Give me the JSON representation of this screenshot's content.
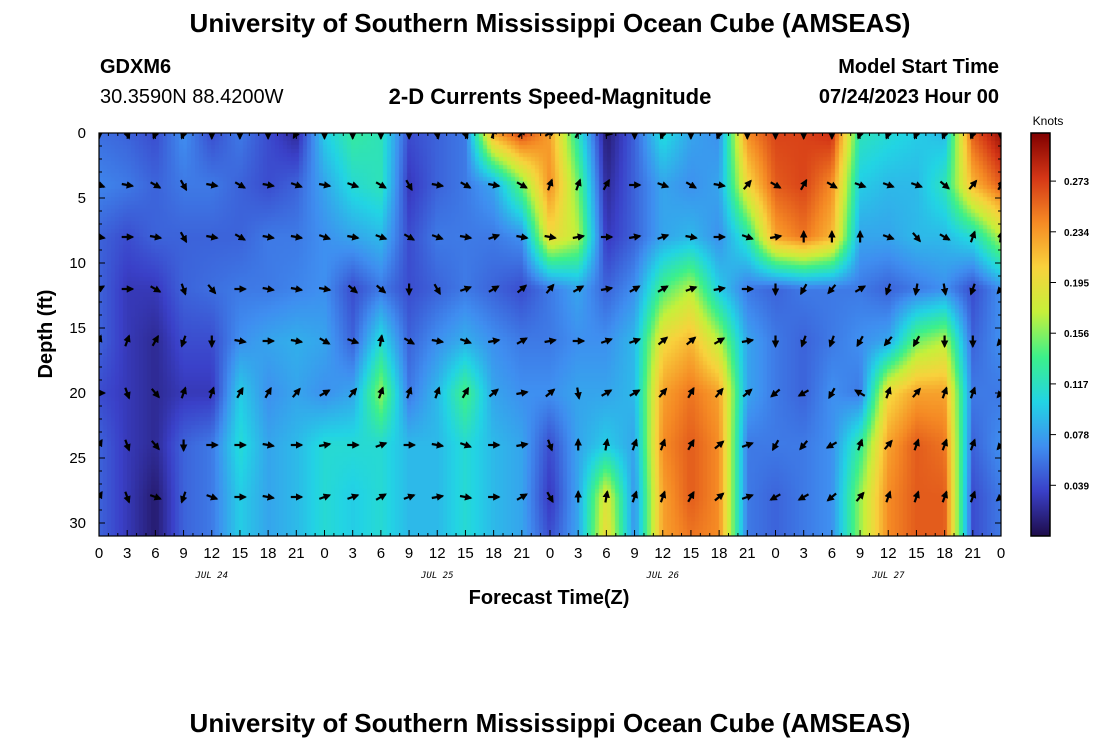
{
  "header": {
    "title": "University of Southern Mississippi Ocean Cube (AMSEAS)",
    "station": "GDXM6",
    "coords": "30.3590N  88.4200W",
    "subtitle": "2-D Currents Speed-Magnitude",
    "model_start_label": "Model Start Time",
    "model_start_date": "07/24/2023 Hour 00"
  },
  "footer": {
    "title": "University of Southern Mississippi Ocean Cube (AMSEAS)"
  },
  "chart_data": {
    "type": "heatmap",
    "title": "2-D Currents Speed-Magnitude",
    "xlabel": "Forecast Time(Z)",
    "ylabel": "Depth (ft)",
    "x_tick_labels": [
      "0",
      "3",
      "6",
      "9",
      "12",
      "15",
      "18",
      "21",
      "0",
      "3",
      "6",
      "9",
      "12",
      "15",
      "18",
      "21",
      "0",
      "3",
      "6",
      "9",
      "12",
      "15",
      "18",
      "21",
      "0",
      "3",
      "6",
      "9",
      "12",
      "15",
      "18",
      "21",
      "0"
    ],
    "day_labels": [
      {
        "label": "JUL 24",
        "hour": 12
      },
      {
        "label": "JUL 25",
        "hour": 36
      },
      {
        "label": "JUL 26",
        "hour": 60
      },
      {
        "label": "JUL 27",
        "hour": 84
      }
    ],
    "xlim_hours": [
      0,
      96
    ],
    "y_ticks": [
      0,
      5,
      10,
      15,
      20,
      25,
      30
    ],
    "ylim_ft": [
      0,
      31
    ],
    "colorbar": {
      "label": "Knots",
      "ticks": [
        "0.273",
        "0.234",
        "0.195",
        "0.156",
        "0.117",
        "0.078",
        "0.039"
      ],
      "tick_values": [
        0.273,
        0.234,
        0.195,
        0.156,
        0.117,
        0.078,
        0.039
      ],
      "range": [
        0.0,
        0.31
      ],
      "colors": [
        "#1e0c4a",
        "#3a40c8",
        "#3f8ef0",
        "#22d4e4",
        "#3cf08a",
        "#c6f03a",
        "#f8d23c",
        "#f58a24",
        "#d43616",
        "#800000"
      ]
    },
    "speed_column_hours": [
      0,
      3,
      6,
      9,
      12,
      15,
      18,
      21,
      24,
      27,
      30,
      33,
      36,
      39,
      42,
      45,
      48,
      51,
      54,
      57,
      60,
      63,
      66,
      69,
      72,
      75,
      78,
      81,
      84,
      87,
      90,
      93,
      96
    ],
    "speed_row_depths_ft": [
      0,
      4,
      8,
      12,
      16,
      20,
      24,
      28,
      31
    ],
    "speed_knots": [
      [
        0.055,
        0.05,
        0.04,
        0.07,
        0.04,
        0.06,
        0.04,
        0.02,
        0.1,
        0.13,
        0.12,
        0.04,
        0.05,
        0.06,
        0.23,
        0.27,
        0.23,
        0.12,
        0.01,
        0.05,
        0.11,
        0.08,
        0.07,
        0.24,
        0.27,
        0.27,
        0.28,
        0.12,
        0.11,
        0.1,
        0.09,
        0.26,
        0.3
      ],
      [
        0.065,
        0.06,
        0.05,
        0.06,
        0.06,
        0.05,
        0.04,
        0.05,
        0.08,
        0.11,
        0.12,
        0.03,
        0.05,
        0.06,
        0.08,
        0.15,
        0.24,
        0.15,
        0.02,
        0.05,
        0.08,
        0.07,
        0.08,
        0.2,
        0.26,
        0.27,
        0.24,
        0.1,
        0.09,
        0.09,
        0.12,
        0.22,
        0.26
      ],
      [
        0.05,
        0.04,
        0.05,
        0.05,
        0.05,
        0.05,
        0.06,
        0.06,
        0.07,
        0.08,
        0.09,
        0.04,
        0.06,
        0.06,
        0.06,
        0.07,
        0.2,
        0.17,
        0.03,
        0.05,
        0.08,
        0.09,
        0.07,
        0.12,
        0.23,
        0.25,
        0.22,
        0.08,
        0.08,
        0.09,
        0.09,
        0.11,
        0.17
      ],
      [
        0.05,
        0.03,
        0.03,
        0.05,
        0.055,
        0.06,
        0.06,
        0.065,
        0.07,
        0.04,
        0.06,
        0.04,
        0.05,
        0.06,
        0.05,
        0.04,
        0.06,
        0.08,
        0.05,
        0.07,
        0.14,
        0.17,
        0.1,
        0.06,
        0.05,
        0.06,
        0.06,
        0.06,
        0.05,
        0.06,
        0.07,
        0.04,
        0.07
      ],
      [
        0.05,
        0.03,
        0.02,
        0.04,
        0.04,
        0.07,
        0.08,
        0.085,
        0.08,
        0.05,
        0.11,
        0.05,
        0.07,
        0.085,
        0.07,
        0.06,
        0.06,
        0.07,
        0.07,
        0.09,
        0.2,
        0.22,
        0.17,
        0.08,
        0.06,
        0.05,
        0.06,
        0.07,
        0.08,
        0.15,
        0.17,
        0.05,
        0.07
      ],
      [
        0.04,
        0.03,
        0.02,
        0.03,
        0.03,
        0.1,
        0.07,
        0.08,
        0.07,
        0.08,
        0.16,
        0.06,
        0.09,
        0.14,
        0.08,
        0.07,
        0.07,
        0.08,
        0.08,
        0.09,
        0.23,
        0.25,
        0.23,
        0.08,
        0.06,
        0.05,
        0.07,
        0.06,
        0.2,
        0.23,
        0.23,
        0.06,
        0.06
      ],
      [
        0.05,
        0.03,
        0.02,
        0.05,
        0.06,
        0.11,
        0.08,
        0.09,
        0.11,
        0.11,
        0.11,
        0.09,
        0.09,
        0.11,
        0.09,
        0.08,
        0.04,
        0.08,
        0.1,
        0.08,
        0.24,
        0.26,
        0.24,
        0.06,
        0.06,
        0.06,
        0.07,
        0.13,
        0.23,
        0.26,
        0.25,
        0.05,
        0.07
      ],
      [
        0.05,
        0.03,
        0.01,
        0.05,
        0.06,
        0.1,
        0.08,
        0.09,
        0.11,
        0.1,
        0.11,
        0.09,
        0.09,
        0.11,
        0.09,
        0.08,
        0.03,
        0.08,
        0.19,
        0.07,
        0.23,
        0.26,
        0.24,
        0.06,
        0.05,
        0.06,
        0.07,
        0.16,
        0.24,
        0.26,
        0.26,
        0.04,
        0.06
      ],
      [
        0.05,
        0.03,
        0.01,
        0.05,
        0.06,
        0.1,
        0.08,
        0.09,
        0.11,
        0.1,
        0.11,
        0.09,
        0.09,
        0.11,
        0.09,
        0.08,
        0.04,
        0.08,
        0.2,
        0.07,
        0.23,
        0.25,
        0.24,
        0.06,
        0.05,
        0.06,
        0.07,
        0.16,
        0.24,
        0.26,
        0.26,
        0.04,
        0.06
      ]
    ],
    "vector_column_hours": [
      0,
      3,
      6,
      9,
      12,
      15,
      18,
      21,
      24,
      27,
      30,
      33,
      36,
      39,
      42,
      45,
      48,
      51,
      54,
      57,
      60,
      63,
      66,
      69,
      72,
      75,
      78,
      81,
      84,
      87,
      90,
      93,
      96
    ],
    "vector_row_depths_ft": [
      0,
      4,
      8,
      12,
      16,
      20,
      24,
      28
    ],
    "vector_dir_deg": [
      [
        180,
        160,
        200,
        200,
        180,
        180,
        180,
        210,
        180,
        180,
        180,
        180,
        170,
        160,
        20,
        40,
        60,
        30,
        100,
        180,
        200,
        180,
        200,
        180,
        180,
        180,
        180,
        200,
        200,
        200,
        200,
        200,
        180
      ],
      [
        110,
        100,
        120,
        150,
        100,
        120,
        100,
        110,
        100,
        110,
        120,
        150,
        100,
        120,
        100,
        120,
        20,
        20,
        30,
        90,
        110,
        120,
        100,
        40,
        120,
        30,
        120,
        110,
        110,
        110,
        130,
        40,
        30
      ],
      [
        100,
        90,
        100,
        150,
        100,
        120,
        100,
        100,
        110,
        100,
        110,
        120,
        110,
        100,
        70,
        100,
        100,
        80,
        90,
        80,
        70,
        100,
        90,
        110,
        80,
        0,
        0,
        0,
        110,
        140,
        120,
        20,
        10
      ],
      [
        60,
        90,
        120,
        160,
        140,
        90,
        100,
        100,
        100,
        130,
        130,
        180,
        150,
        70,
        60,
        50,
        40,
        60,
        80,
        60,
        60,
        70,
        80,
        90,
        180,
        210,
        220,
        60,
        200,
        190,
        170,
        200,
        220
      ],
      [
        20,
        20,
        30,
        200,
        180,
        100,
        90,
        100,
        120,
        110,
        10,
        120,
        100,
        110,
        80,
        60,
        80,
        90,
        70,
        70,
        50,
        50,
        60,
        80,
        180,
        200,
        200,
        210,
        220,
        210,
        180,
        180,
        220
      ],
      [
        90,
        160,
        140,
        20,
        20,
        30,
        30,
        40,
        60,
        40,
        20,
        20,
        20,
        30,
        50,
        80,
        50,
        170,
        60,
        60,
        40,
        30,
        40,
        50,
        230,
        240,
        210,
        300,
        20,
        40,
        20,
        20,
        220
      ],
      [
        30,
        160,
        140,
        180,
        90,
        90,
        100,
        90,
        80,
        90,
        70,
        90,
        100,
        110,
        90,
        80,
        160,
        0,
        10,
        20,
        20,
        30,
        50,
        70,
        210,
        220,
        240,
        20,
        40,
        20,
        20,
        20,
        220
      ],
      [
        30,
        160,
        110,
        200,
        110,
        90,
        100,
        90,
        70,
        70,
        60,
        70,
        80,
        100,
        90,
        60,
        150,
        0,
        10,
        20,
        20,
        30,
        50,
        70,
        240,
        240,
        230,
        40,
        20,
        20,
        20,
        20,
        230
      ]
    ]
  }
}
